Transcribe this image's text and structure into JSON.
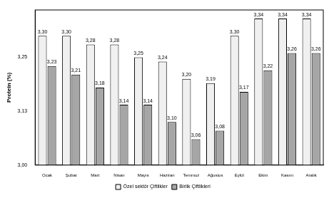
{
  "chart_data": {
    "type": "bar",
    "y_label": "Protein (%)",
    "categories": [
      "Ocak",
      "Şubat",
      "Mart",
      "Nisan",
      "Mayıs",
      "Haziran",
      "Temmuz",
      "Ağustos",
      "Eylül",
      "Ekim",
      "Kasım",
      "Aralık"
    ],
    "series": [
      {
        "name": "Özel sektör Çiftlikler",
        "color": "#f0f0f0",
        "values": [
          3.3,
          3.3,
          3.28,
          3.28,
          3.25,
          3.24,
          3.2,
          3.19,
          3.3,
          3.34,
          3.34,
          3.34
        ],
        "value_labels": [
          "3,30",
          "3,30",
          "3,28",
          "3,28",
          "3,25",
          "3,24",
          "3,20",
          "3,19",
          "3,30",
          "3,34",
          "3,34",
          "3,34"
        ]
      },
      {
        "name": "Birlik Çiftlikleri",
        "color": "#a6a6a6",
        "values": [
          3.23,
          3.21,
          3.18,
          3.14,
          3.14,
          3.1,
          3.06,
          3.08,
          3.17,
          3.22,
          3.26,
          3.26
        ],
        "value_labels": [
          "3,23",
          "3,21",
          "3,18",
          "3,14",
          "3,14",
          "3,10",
          "3,06",
          "3,08",
          "3,17",
          "3,22",
          "3,26",
          "3,26"
        ]
      }
    ],
    "ylim": [
      3.0,
      3.36
    ],
    "yticks": [
      {
        "value": 3.0,
        "label": "3,00"
      },
      {
        "value": 3.125,
        "label": "3,13"
      },
      {
        "value": 3.25,
        "label": "3,25"
      }
    ],
    "grid": false,
    "legend": "bottom",
    "data_labels": true
  }
}
